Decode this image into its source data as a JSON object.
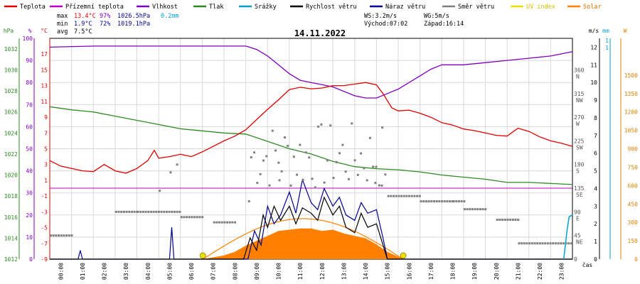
{
  "colors": {
    "temp": "#e00000",
    "feels": "#c000c0",
    "humidity": "#8000c0",
    "pressure": "#2e8b22",
    "rain": "#00a0d0",
    "wind": "#000000",
    "gust": "#000090",
    "wdir": "#808080",
    "uv": "#e8e000",
    "solar": "#ff8000",
    "grid": "#d8d8d8",
    "axis": "#000000"
  },
  "legend": [
    {
      "key": "temp",
      "label": "Teplota"
    },
    {
      "key": "feels",
      "label": "Přízemní teplota"
    },
    {
      "key": "humidity",
      "label": "Vlhkost"
    },
    {
      "key": "pressure",
      "label": "Tlak"
    },
    {
      "key": "rain",
      "label": "Srážky"
    },
    {
      "key": "wind",
      "label": "Rychlost větru"
    },
    {
      "key": "gust",
      "label": "Náraz větru"
    },
    {
      "key": "wdir",
      "label": "Směr větru"
    },
    {
      "key": "uv",
      "label": "UV index"
    },
    {
      "key": "solar",
      "label": "Solar"
    }
  ],
  "stats": {
    "max": {
      "label": "max",
      "temp": "13.4°C",
      "hum": "97%",
      "press": "1026.5hPa",
      "rain": "0.2mm"
    },
    "min": {
      "label": "min",
      "temp": "1.9°C",
      "hum": "72%",
      "press": "1019.1hPa"
    },
    "avg": {
      "label": "avg",
      "temp": "7.5°C"
    }
  },
  "info": {
    "ws": "WS:3.2m/s",
    "wg": "WG:5m/s",
    "sunrise": "Východ:07:02",
    "sunset": "Západ:16:14"
  },
  "title": "14.11.2022",
  "axes": {
    "hpa": {
      "unit": "hPa",
      "ticks": [
        "1032",
        "1030",
        "1028",
        "1026",
        "1024",
        "1022",
        "1020",
        "1018",
        "1016",
        "1014",
        "1012"
      ]
    },
    "pct": {
      "unit": "%",
      "ticks": [
        "100",
        "90",
        "80",
        "70",
        "60",
        "50",
        "40",
        "30",
        "20",
        "10",
        "0"
      ]
    },
    "degc": {
      "unit": "°C",
      "ticks": [
        "17",
        "15",
        "13",
        "11",
        "9",
        "7",
        "5",
        "3",
        "1",
        "-1",
        "-3",
        "-5",
        "-7",
        "-9"
      ]
    },
    "dir": {
      "ticks": [
        "360\nN",
        "315\nNW",
        "270\nW",
        "225\nSW",
        "180\nS",
        "135\nSE",
        "90\nE",
        "45\nNE",
        "0"
      ]
    },
    "ms": {
      "unit": "m/s",
      "ticks": [
        "12",
        "11",
        "10",
        "9",
        "8",
        "7",
        "6",
        "5",
        "4",
        "3",
        "2",
        "1",
        "0"
      ]
    },
    "mm": {
      "unit": "mm",
      "ticks": [
        "1",
        "1"
      ]
    },
    "w": {
      "unit": "W",
      "ticks": [
        "1500",
        "1350",
        "1200",
        "1050",
        "900",
        "750",
        "600",
        "450",
        "300",
        "150",
        "0"
      ]
    },
    "x": {
      "unit": "čas",
      "ticks": [
        "00:00",
        "01:00",
        "02:00",
        "03:00",
        "04:00",
        "05:00",
        "06:00",
        "07:00",
        "08:00",
        "09:00",
        "10:00",
        "11:00",
        "12:00",
        "13:00",
        "14:00",
        "15:00",
        "16:00",
        "17:00",
        "18:00",
        "19:00",
        "20:00",
        "21:00",
        "22:00",
        "23:00"
      ]
    }
  },
  "chart_data": {
    "type": "line",
    "x_unit": "hour",
    "x_range": [
      0,
      24
    ],
    "series": [
      {
        "key": "temp",
        "name": "Teplota",
        "unit": "°C",
        "points": [
          [
            0,
            3.5
          ],
          [
            0.5,
            2.8
          ],
          [
            1,
            2.5
          ],
          [
            1.5,
            2.2
          ],
          [
            2,
            2.1
          ],
          [
            2.5,
            3.0
          ],
          [
            3,
            2.2
          ],
          [
            3.5,
            1.9
          ],
          [
            4,
            2.5
          ],
          [
            4.5,
            3.5
          ],
          [
            4.8,
            4.8
          ],
          [
            5,
            3.8
          ],
          [
            5.5,
            4.0
          ],
          [
            6,
            4.3
          ],
          [
            6.5,
            4.0
          ],
          [
            7,
            4.6
          ],
          [
            7.5,
            5.3
          ],
          [
            8,
            6.0
          ],
          [
            8.5,
            6.6
          ],
          [
            9,
            7.4
          ],
          [
            9.5,
            8.7
          ],
          [
            10,
            10.0
          ],
          [
            10.5,
            11.2
          ],
          [
            11,
            12.5
          ],
          [
            11.5,
            12.8
          ],
          [
            12,
            12.6
          ],
          [
            12.5,
            12.7
          ],
          [
            13,
            13.0
          ],
          [
            13.5,
            13.0
          ],
          [
            14,
            13.2
          ],
          [
            14.5,
            13.4
          ],
          [
            15,
            13.1
          ],
          [
            15.3,
            12.0
          ],
          [
            15.7,
            10.2
          ],
          [
            16,
            9.8
          ],
          [
            16.5,
            9.9
          ],
          [
            17,
            9.5
          ],
          [
            17.5,
            9.0
          ],
          [
            18,
            8.3
          ],
          [
            18.5,
            8.0
          ],
          [
            19,
            7.5
          ],
          [
            19.5,
            7.3
          ],
          [
            20,
            7.0
          ],
          [
            20.5,
            6.7
          ],
          [
            21,
            6.6
          ],
          [
            21.5,
            7.6
          ],
          [
            22,
            7.2
          ],
          [
            22.5,
            6.5
          ],
          [
            23,
            6.0
          ],
          [
            23.5,
            5.7
          ],
          [
            24,
            5.3
          ]
        ]
      },
      {
        "key": "humidity",
        "name": "Vlhkost",
        "unit": "%",
        "points": [
          [
            0,
            96
          ],
          [
            2,
            96.5
          ],
          [
            4,
            96.5
          ],
          [
            6,
            96.5
          ],
          [
            8,
            96.5
          ],
          [
            9,
            96.5
          ],
          [
            9.5,
            95
          ],
          [
            10,
            92
          ],
          [
            10.5,
            88
          ],
          [
            11,
            84
          ],
          [
            11.5,
            81
          ],
          [
            12,
            80
          ],
          [
            12.5,
            79
          ],
          [
            13,
            78
          ],
          [
            13.5,
            76
          ],
          [
            14,
            74
          ],
          [
            14.5,
            73
          ],
          [
            15,
            73
          ],
          [
            15.5,
            75
          ],
          [
            16,
            77
          ],
          [
            16.5,
            80
          ],
          [
            17,
            83
          ],
          [
            17.5,
            86
          ],
          [
            18,
            88
          ],
          [
            19,
            88
          ],
          [
            20,
            89
          ],
          [
            21,
            90
          ],
          [
            22,
            91
          ],
          [
            23,
            92
          ],
          [
            24,
            94
          ]
        ]
      },
      {
        "key": "pressure",
        "name": "Tlak",
        "unit": "hPa",
        "points": [
          [
            0,
            1026.5
          ],
          [
            1,
            1026.2
          ],
          [
            2,
            1026.0
          ],
          [
            3,
            1025.6
          ],
          [
            4,
            1025.2
          ],
          [
            5,
            1024.8
          ],
          [
            6,
            1024.4
          ],
          [
            7,
            1024.2
          ],
          [
            8,
            1024.0
          ],
          [
            9,
            1023.9
          ],
          [
            10,
            1023.2
          ],
          [
            11,
            1022.5
          ],
          [
            12,
            1022.0
          ],
          [
            13,
            1021.3
          ],
          [
            14,
            1020.8
          ],
          [
            15,
            1020.6
          ],
          [
            16,
            1020.5
          ],
          [
            17,
            1020.3
          ],
          [
            18,
            1020.0
          ],
          [
            19,
            1019.8
          ],
          [
            20,
            1019.6
          ],
          [
            21,
            1019.3
          ],
          [
            22,
            1019.3
          ],
          [
            23,
            1019.2
          ],
          [
            24,
            1019.1
          ]
        ]
      },
      {
        "key": "wind",
        "name": "Rychlost větru",
        "unit": "m/s",
        "points": [
          [
            0,
            0
          ],
          [
            8.9,
            0
          ],
          [
            9.2,
            1.2
          ],
          [
            9.5,
            0.5
          ],
          [
            9.8,
            2.5
          ],
          [
            10,
            1.8
          ],
          [
            10.3,
            3.0
          ],
          [
            10.6,
            2.2
          ],
          [
            11,
            3.0
          ],
          [
            11.3,
            2.0
          ],
          [
            11.6,
            2.9
          ],
          [
            12,
            2.6
          ],
          [
            12.3,
            2.2
          ],
          [
            12.6,
            3.5
          ],
          [
            13,
            2.5
          ],
          [
            13.3,
            3.0
          ],
          [
            13.6,
            1.8
          ],
          [
            14,
            1.5
          ],
          [
            14.3,
            2.6
          ],
          [
            14.6,
            1.8
          ],
          [
            15,
            2.0
          ],
          [
            15.3,
            0.8
          ],
          [
            15.5,
            0
          ],
          [
            24,
            0
          ]
        ]
      },
      {
        "key": "gust",
        "name": "Náraz větru",
        "unit": "m/s",
        "points": [
          [
            0,
            0
          ],
          [
            1.3,
            0
          ],
          [
            1.4,
            0.5
          ],
          [
            1.5,
            0
          ],
          [
            5.5,
            0
          ],
          [
            5.6,
            1.8
          ],
          [
            5.7,
            0
          ],
          [
            9.1,
            0
          ],
          [
            9.4,
            1.6
          ],
          [
            9.7,
            0.8
          ],
          [
            10,
            3.0
          ],
          [
            10.3,
            2.0
          ],
          [
            10.6,
            2.5
          ],
          [
            11,
            3.8
          ],
          [
            11.3,
            2.6
          ],
          [
            11.6,
            4.5
          ],
          [
            12,
            3.2
          ],
          [
            12.3,
            2.8
          ],
          [
            12.6,
            4.0
          ],
          [
            13,
            3.0
          ],
          [
            13.3,
            3.5
          ],
          [
            13.6,
            2.5
          ],
          [
            14,
            2.2
          ],
          [
            14.3,
            3.2
          ],
          [
            14.6,
            2.6
          ],
          [
            15,
            2.8
          ],
          [
            15.3,
            1.2
          ],
          [
            15.5,
            0
          ],
          [
            24,
            0
          ]
        ]
      },
      {
        "key": "solar",
        "name": "Solar",
        "unit": "W/m²",
        "points": [
          [
            7,
            0
          ],
          [
            8,
            30
          ],
          [
            8.5,
            60
          ],
          [
            9,
            110
          ],
          [
            9.5,
            150
          ],
          [
            10,
            190
          ],
          [
            10.5,
            230
          ],
          [
            11,
            240
          ],
          [
            11.5,
            250
          ],
          [
            12,
            250
          ],
          [
            12.5,
            230
          ],
          [
            13,
            240
          ],
          [
            13.5,
            210
          ],
          [
            14,
            190
          ],
          [
            14.5,
            170
          ],
          [
            15,
            120
          ],
          [
            15.5,
            60
          ],
          [
            16,
            20
          ],
          [
            16.2,
            0
          ]
        ]
      },
      {
        "key": "uv",
        "name": "UV index",
        "points": [
          [
            7.03,
            0
          ],
          [
            16.23,
            0
          ]
        ]
      }
    ]
  }
}
